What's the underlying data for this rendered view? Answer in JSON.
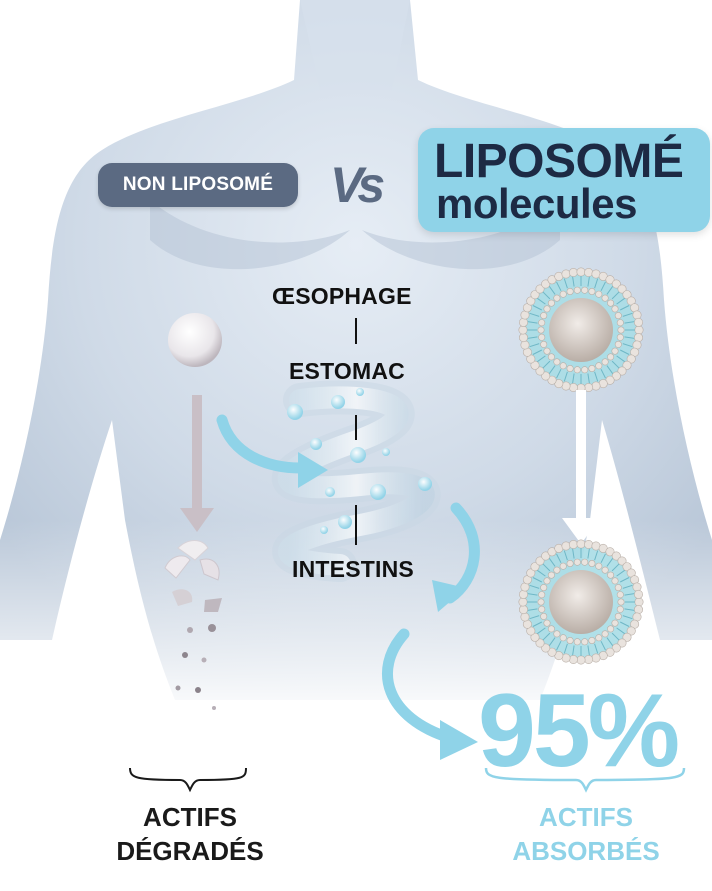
{
  "labels": {
    "non_liposome": "NON LIPOSOMÉ",
    "vs": "Vs",
    "brand_line1": "LIPOSOMÉ",
    "brand_line2": "molecules",
    "organ_1": "ŒSOPHAGE",
    "organ_2": "ESTOMAC",
    "organ_3": "INTESTINS",
    "percent": "95%",
    "left_result_1": "ACTIFS",
    "left_result_2": "DÉGRADÉS",
    "right_result_1": "ACTIFS",
    "right_result_2": "ABSORBÉS"
  },
  "colors": {
    "accent": "#8fd3e8",
    "badge": "#5b6a82",
    "text_dark": "#1a1a1a",
    "brand_text": "#1d2a44",
    "body_skin": "#cdd9e6",
    "arrow_grey": "#c9bfc6"
  },
  "icons": [
    "human-torso",
    "white-capsule",
    "liposome-sphere",
    "digestive-spiral",
    "arrow"
  ]
}
